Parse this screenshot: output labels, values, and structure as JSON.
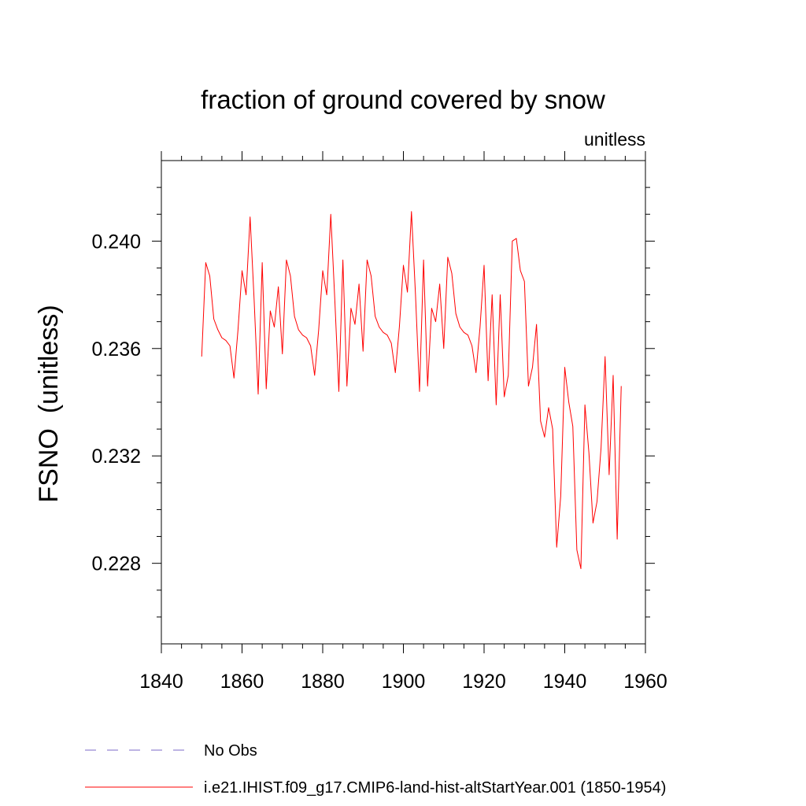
{
  "chart_data": {
    "type": "line",
    "title": "fraction of ground covered by snow",
    "subtitle": "unitless",
    "ylabel": "FSNO  (unitless)",
    "xlabel": "",
    "xlim": [
      1840,
      1960
    ],
    "ylim": [
      0.225,
      0.243
    ],
    "x_ticks": [
      1840,
      1860,
      1880,
      1900,
      1920,
      1940,
      1960
    ],
    "x_tick_labels": [
      "1840",
      "1860",
      "1880",
      "1900",
      "1920",
      "1940",
      "1960"
    ],
    "y_ticks": [
      0.228,
      0.232,
      0.236,
      0.24
    ],
    "y_tick_labels": [
      "0.228",
      "0.232",
      "0.236",
      "0.240"
    ],
    "grid": false,
    "legend_placement": "bottom-left",
    "legend": [
      {
        "label": "No Obs",
        "color": "#7b68c8",
        "style": "dashed"
      },
      {
        "label": "i.e21.IHIST.f09_g17.CMIP6-land-hist-altStartYear.001 (1850-1954)",
        "color": "#ff0000",
        "style": "solid"
      }
    ],
    "series": [
      {
        "name": "i.e21.IHIST.f09_g17.CMIP6-land-hist-altStartYear.001 (1850-1954)",
        "color": "#ff0000",
        "x": [
          1850,
          1851,
          1852,
          1853,
          1854,
          1855,
          1856,
          1857,
          1858,
          1859,
          1860,
          1861,
          1862,
          1863,
          1864,
          1865,
          1866,
          1867,
          1868,
          1869,
          1870,
          1871,
          1872,
          1873,
          1874,
          1875,
          1876,
          1877,
          1878,
          1879,
          1880,
          1881,
          1882,
          1883,
          1884,
          1885,
          1886,
          1887,
          1888,
          1889,
          1890,
          1891,
          1892,
          1893,
          1894,
          1895,
          1896,
          1897,
          1898,
          1899,
          1900,
          1901,
          1902,
          1903,
          1904,
          1905,
          1906,
          1907,
          1908,
          1909,
          1910,
          1911,
          1912,
          1913,
          1914,
          1915,
          1916,
          1917,
          1918,
          1919,
          1920,
          1921,
          1922,
          1923,
          1924,
          1925,
          1926,
          1927,
          1928,
          1929,
          1930,
          1931,
          1932,
          1933,
          1934,
          1935,
          1936,
          1937,
          1938,
          1939,
          1940,
          1941,
          1942,
          1943,
          1944,
          1945,
          1946,
          1947,
          1948,
          1949,
          1950,
          1951,
          1952,
          1953,
          1954
        ],
        "values": [
          0.2357,
          0.2392,
          0.2387,
          0.2371,
          0.2367,
          0.2364,
          0.2363,
          0.2361,
          0.2349,
          0.2367,
          0.2389,
          0.238,
          0.2409,
          0.2378,
          0.2343,
          0.2392,
          0.2345,
          0.2374,
          0.2368,
          0.2383,
          0.2358,
          0.2393,
          0.2387,
          0.2372,
          0.2367,
          0.2365,
          0.2364,
          0.2361,
          0.235,
          0.2367,
          0.2389,
          0.238,
          0.241,
          0.2378,
          0.2344,
          0.2393,
          0.2346,
          0.2375,
          0.2369,
          0.2384,
          0.2359,
          0.2393,
          0.2387,
          0.2372,
          0.2368,
          0.2366,
          0.2365,
          0.2362,
          0.2351,
          0.2368,
          0.2391,
          0.2381,
          0.2411,
          0.238,
          0.2344,
          0.2393,
          0.2346,
          0.2375,
          0.237,
          0.2384,
          0.236,
          0.2394,
          0.2388,
          0.2373,
          0.2368,
          0.2366,
          0.2365,
          0.2361,
          0.2351,
          0.2368,
          0.2391,
          0.2348,
          0.238,
          0.2339,
          0.238,
          0.2342,
          0.235,
          0.24,
          0.2401,
          0.2389,
          0.2385,
          0.2346,
          0.2353,
          0.2369,
          0.2333,
          0.2327,
          0.2338,
          0.233,
          0.2286,
          0.2305,
          0.2353,
          0.234,
          0.2331,
          0.2285,
          0.2278,
          0.2339,
          0.2321,
          0.2295,
          0.2303,
          0.2323,
          0.2357,
          0.2313,
          0.235,
          0.2289,
          0.2346
        ]
      }
    ]
  }
}
